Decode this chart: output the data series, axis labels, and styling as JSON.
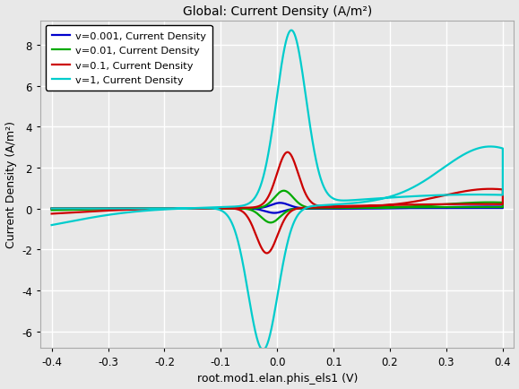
{
  "title": "Global: Current Density (A/m²)",
  "xlabel": "root.mod1.elan.phis_els1 (V)",
  "ylabel": "Current Density (A/m²)",
  "xlim": [
    -0.42,
    0.42
  ],
  "ylim": [
    -6.8,
    9.2
  ],
  "yticks": [
    -6,
    -4,
    -2,
    0,
    2,
    4,
    6,
    8
  ],
  "xticks": [
    -0.4,
    -0.3,
    -0.2,
    -0.1,
    0.0,
    0.1,
    0.2,
    0.3,
    0.4
  ],
  "background_color": "#e8e8e8",
  "grid_color": "#ffffff",
  "curves": [
    {
      "label": "v=0.001, Current Density",
      "color": "#0000cc",
      "v": 0.001
    },
    {
      "label": "v=0.01, Current Density",
      "color": "#00aa00",
      "v": 0.01
    },
    {
      "label": "v=0.1, Current Density",
      "color": "#cc0000",
      "v": 0.1
    },
    {
      "label": "v=1, Current Density",
      "color": "#00cccc",
      "v": 1.0
    }
  ]
}
